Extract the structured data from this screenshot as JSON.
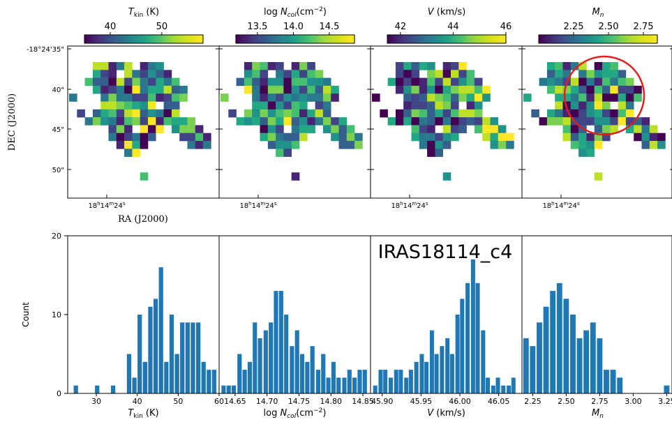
{
  "figure_label": "IRAS18114_c4",
  "maps": {
    "dec_label": "DEC (J2000)",
    "ra_label": "RA (J2000)",
    "dec_ticks": [
      "-18°24'35\"",
      "40\"",
      "45\"",
      "50\""
    ],
    "ra_tick": "18h14m24s",
    "circle_color": "#e02020",
    "panels": [
      {
        "name": "tkin",
        "colorbar_label": "T_kin (K)",
        "colorbar_ticks": [
          40,
          50
        ],
        "colorbar_range": [
          35,
          58
        ]
      },
      {
        "name": "ncol",
        "colorbar_label": "log N_col(cm^-2)",
        "colorbar_ticks": [
          13.5,
          14.0,
          14.5
        ],
        "colorbar_range": [
          13.2,
          14.85
        ]
      },
      {
        "name": "vel",
        "colorbar_label": "V (km/s)",
        "colorbar_ticks": [
          42,
          44,
          46
        ],
        "colorbar_range": [
          41.5,
          46
        ]
      },
      {
        "name": "mach",
        "colorbar_label": "M_n",
        "colorbar_ticks": [
          2.25,
          2.5,
          2.75
        ],
        "colorbar_range": [
          2.0,
          2.85
        ]
      }
    ]
  },
  "chart_data": {
    "type": "bar",
    "ylabel": "Count",
    "ylim": [
      0,
      20
    ],
    "yticks": [
      0,
      10,
      20
    ],
    "panels": [
      {
        "xlabel": "T_kin (K)",
        "xlim": [
          23,
          60
        ],
        "xticks": [
          "30",
          "40",
          "50",
          "60"
        ],
        "bin_width": 1.3,
        "x": [
          25,
          26.3,
          27.6,
          28.9,
          30.2,
          31.5,
          32.8,
          34.1,
          35.4,
          36.7,
          38.0,
          39.3,
          40.6,
          41.9,
          43.2,
          44.5,
          45.8,
          47.1,
          48.4,
          49.7,
          51.0,
          52.3,
          53.6,
          54.9,
          56.2,
          57.5,
          58.8
        ],
        "values": [
          1,
          0,
          0,
          0,
          1,
          0,
          0,
          1,
          0,
          0,
          5,
          2,
          10,
          4,
          11,
          12,
          16,
          4,
          10,
          5,
          9,
          9,
          9,
          9,
          4,
          3,
          3
        ]
      },
      {
        "xlabel": "log N_col(cm^-2)",
        "xlim": [
          14.625,
          14.862
        ],
        "xticks": [
          "14.65",
          "14.70",
          "14.75",
          "14.80",
          "14.85"
        ],
        "bin_width": 0.0082,
        "x": [
          14.632,
          14.64,
          14.648,
          14.657,
          14.665,
          14.673,
          14.681,
          14.689,
          14.698,
          14.706,
          14.714,
          14.722,
          14.73,
          14.739,
          14.747,
          14.755,
          14.763,
          14.771,
          14.78,
          14.788,
          14.796,
          14.804,
          14.812,
          14.821,
          14.829,
          14.837,
          14.845,
          14.853
        ],
        "values": [
          1,
          1,
          1,
          5,
          3,
          4,
          9,
          7,
          8,
          9,
          13,
          13,
          10,
          6,
          8,
          5,
          4,
          6,
          3,
          5,
          2,
          4,
          2,
          2,
          3,
          2,
          3,
          3
        ]
      },
      {
        "xlabel": "V (km/s)",
        "xlim": [
          45.885,
          46.08
        ],
        "xticks": [
          "45.90",
          "45.95",
          "46.00",
          "46.05"
        ],
        "bin_width": 0.0066,
        "x": [
          45.891,
          45.898,
          45.904,
          45.911,
          45.918,
          45.924,
          45.931,
          45.937,
          45.944,
          45.951,
          45.957,
          45.964,
          45.97,
          45.977,
          45.984,
          45.99,
          45.997,
          46.003,
          46.01,
          46.017,
          46.023,
          46.03,
          46.036,
          46.043,
          46.049,
          46.056,
          46.063,
          46.069
        ],
        "values": [
          1,
          3,
          3,
          2,
          3,
          3,
          2,
          3,
          4,
          5,
          4,
          8,
          5,
          6,
          7,
          5,
          10,
          12,
          14,
          17,
          14,
          8,
          2,
          1,
          2,
          1,
          1,
          2
        ]
      },
      {
        "xlabel": "M_n",
        "xlim": [
          2.17,
          3.3
        ],
        "xticks": [
          "2.25",
          "2.50",
          "2.75",
          "3.00",
          "3.25"
        ],
        "bin_width": 0.05,
        "x": [
          2.2,
          2.25,
          2.3,
          2.35,
          2.4,
          2.45,
          2.5,
          2.55,
          2.6,
          2.65,
          2.7,
          2.75,
          2.8,
          2.85,
          2.9,
          2.95,
          3.0,
          3.05,
          3.1,
          3.15,
          3.2,
          3.25
        ],
        "values": [
          7,
          6,
          9,
          11,
          13,
          14,
          12,
          10,
          7,
          8,
          9,
          7,
          3,
          3,
          2,
          0,
          0,
          0,
          0,
          0,
          0,
          1
        ]
      }
    ]
  }
}
